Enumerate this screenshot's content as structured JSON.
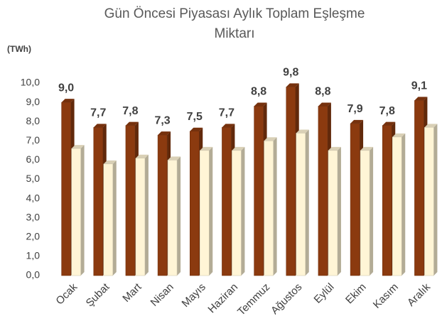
{
  "chart_data": {
    "type": "bar3d",
    "title": "Gün Öncesi Piyasası Aylık Toplam Eşleşme Miktarı",
    "ylabel": "(TWh)",
    "categories": [
      "Ocak",
      "Şubat",
      "Mart",
      "Nisan",
      "Mayıs",
      "Haziran",
      "Temmuz",
      "Ağustos",
      "Eylül",
      "Ekim",
      "Kasım",
      "Aralık"
    ],
    "series": [
      {
        "color": "#8b3a0f",
        "values": [
          9.0,
          7.7,
          7.8,
          7.3,
          7.5,
          7.7,
          8.8,
          9.8,
          8.8,
          7.9,
          7.8,
          9.1
        ],
        "value_labels": [
          "9,0",
          "7,7",
          "7,8",
          "7,3",
          "7,5",
          "7,7",
          "8,8",
          "9,8",
          "8,8",
          "7,9",
          "7,8",
          "9,1"
        ]
      },
      {
        "color": "#fff5d6",
        "values": [
          6.6,
          5.8,
          6.1,
          6.0,
          6.5,
          6.5,
          7.0,
          7.4,
          6.5,
          6.5,
          7.2,
          7.7
        ]
      }
    ],
    "ylim": [
      0,
      10
    ],
    "yticks": [
      {
        "value": 0,
        "label": "0,0"
      },
      {
        "value": 1,
        "label": "1,0"
      },
      {
        "value": 2,
        "label": "2,0"
      },
      {
        "value": 3,
        "label": "3,0"
      },
      {
        "value": 4,
        "label": "4,0"
      },
      {
        "value": 5,
        "label": "5,0"
      },
      {
        "value": 6,
        "label": "6,0"
      },
      {
        "value": 7,
        "label": "7,0"
      },
      {
        "value": 8,
        "label": "8,0"
      },
      {
        "value": 9,
        "label": "9,0"
      },
      {
        "value": 10,
        "label": "10,0"
      }
    ],
    "grid": false
  }
}
